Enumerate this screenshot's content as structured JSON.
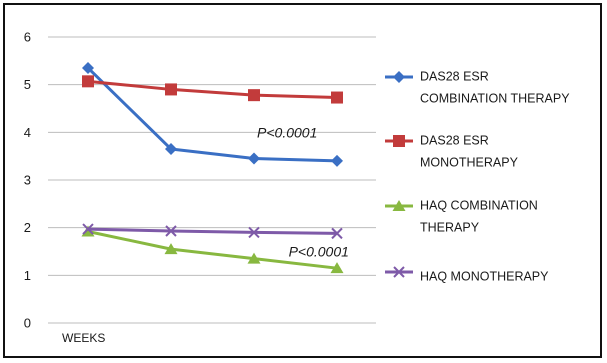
{
  "chart_data": {
    "type": "line",
    "categories": [
      "",
      "",
      "",
      ""
    ],
    "xlabel": "WEEKS",
    "ylabel": "",
    "ylim": [
      0,
      6
    ],
    "yticks": [
      0,
      1,
      2,
      3,
      4,
      5,
      6
    ],
    "grid": true,
    "legend_position": "right",
    "series": [
      {
        "name_lines": [
          "DAS28 ESR",
          "COMBINATION THERAPY"
        ],
        "color": "#3a6fc4",
        "marker": "diamond",
        "values": [
          5.35,
          3.65,
          3.45,
          3.4
        ]
      },
      {
        "name_lines": [
          "DAS28 ESR",
          "MONOTHERAPY"
        ],
        "color": "#c23b3b",
        "marker": "square",
        "values": [
          5.07,
          4.9,
          4.78,
          4.73
        ]
      },
      {
        "name_lines": [
          "HAQ COMBINATION",
          "THERAPY"
        ],
        "color": "#88b840",
        "marker": "triangle",
        "values": [
          1.92,
          1.55,
          1.35,
          1.15
        ]
      },
      {
        "name_lines": [
          "HAQ MONOTHERAPY"
        ],
        "color": "#7e5aa8",
        "marker": "cross",
        "values": [
          1.97,
          1.93,
          1.9,
          1.88
        ]
      }
    ],
    "annotations": [
      {
        "text": "P<0.0001",
        "x_index": 2.4,
        "y": 4.0
      },
      {
        "text": "P<0.0001",
        "x_index": 2.78,
        "y": 1.5
      }
    ]
  }
}
